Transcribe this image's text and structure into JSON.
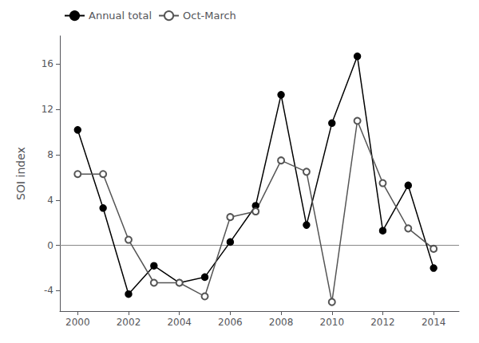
{
  "chart_data": {
    "type": "line",
    "ylabel": "SOI index",
    "x": [
      2000,
      2001,
      2002,
      2003,
      2004,
      2005,
      2006,
      2007,
      2008,
      2009,
      2010,
      2011,
      2012,
      2013,
      2014
    ],
    "series": [
      {
        "name": "Annual total",
        "color": "#000000",
        "marker": "circle",
        "values": [
          10.2,
          3.3,
          -4.3,
          -1.8,
          -3.3,
          -2.8,
          0.3,
          3.5,
          13.3,
          1.8,
          10.8,
          16.7,
          1.3,
          5.3,
          -2.0
        ]
      },
      {
        "name": "Oct-March",
        "color": "#555555",
        "marker": "open circle",
        "values": [
          6.3,
          6.3,
          0.5,
          -3.3,
          -3.3,
          -4.5,
          2.5,
          3.0,
          7.5,
          6.5,
          -5.0,
          11.0,
          5.5,
          1.5,
          -0.3
        ]
      }
    ],
    "xlim": [
      1999.3,
      2015.0
    ],
    "ylim": [
      -5.8,
      18.5
    ],
    "xticks": [
      2000,
      2002,
      2004,
      2006,
      2008,
      2010,
      2012,
      2014
    ],
    "yticks": [
      -4,
      0,
      4,
      8,
      12,
      16
    ],
    "hline": 0,
    "grid": false,
    "legend": "upper left"
  }
}
